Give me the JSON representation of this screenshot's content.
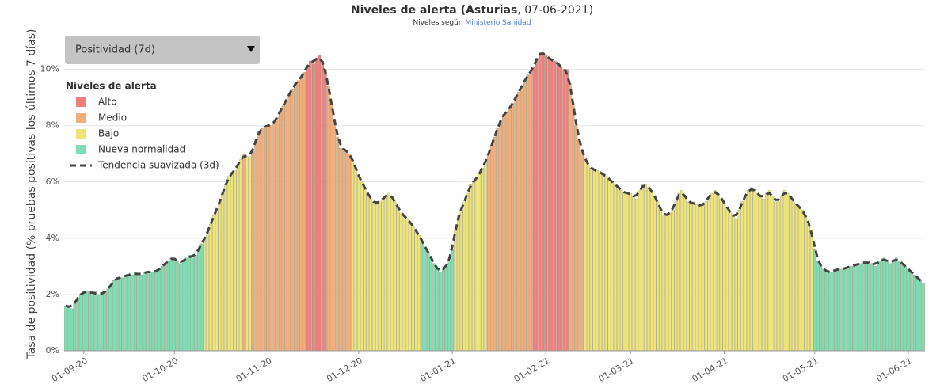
{
  "chart_data": {
    "type": "bar",
    "title": "Niveles de alerta (Asturias",
    "title_rest": ", 07-06-2021)",
    "subtitle": "Niveles según",
    "subtitle_link": "Ministerio Sanidad",
    "dropdown": "Positividad (7d)",
    "ylabel": "Tasa de positividad (% pruebas positivas los últimos 7 días)",
    "legend_title": "Niveles de alerta",
    "levels": [
      {
        "name": "Alto",
        "color": "#ef7f7f",
        "from": 10
      },
      {
        "name": "Medio",
        "color": "#f1ad7b",
        "from": 7
      },
      {
        "name": "Bajo",
        "color": "#eee57a",
        "from": 4
      },
      {
        "name": "Nueva normalidad",
        "color": "#7fdcb4",
        "from": 0
      }
    ],
    "trend": {
      "name": "Tendencia suavizada (3d)",
      "color": "#444444"
    },
    "categories": [
      null,
      null,
      null,
      null,
      null,
      null,
      "01-09-20",
      null,
      null,
      null,
      null,
      null,
      null,
      null,
      null,
      null,
      null,
      null,
      null,
      null,
      null,
      null,
      null,
      null,
      null,
      null,
      null,
      null,
      null,
      null,
      null,
      null,
      null,
      null,
      null,
      null,
      "01-10-20",
      null,
      null,
      null,
      null,
      null,
      null,
      null,
      null,
      null,
      null,
      null,
      null,
      null,
      null,
      null,
      null,
      null,
      null,
      null,
      null,
      null,
      null,
      null,
      null,
      null,
      null,
      null,
      null,
      null,
      null,
      "01-11-20",
      null,
      null,
      null,
      null,
      null,
      null,
      null,
      null,
      null,
      null,
      null,
      null,
      null,
      null,
      null,
      null,
      null,
      null,
      null,
      null,
      null,
      null,
      null,
      null,
      null,
      null,
      null,
      null,
      null,
      "01-12-20",
      null,
      null,
      null,
      null,
      null,
      null,
      null,
      null,
      null,
      null,
      null,
      null,
      null,
      null,
      null,
      null,
      null,
      null,
      null,
      null,
      null,
      null,
      null,
      null,
      null,
      null,
      null,
      null,
      null,
      null,
      "01-01-21",
      null,
      null,
      null,
      null,
      null,
      null,
      null,
      null,
      null,
      null,
      null,
      null,
      null,
      null,
      null,
      null,
      null,
      null,
      null,
      null,
      null,
      null,
      null,
      null,
      null,
      null,
      null,
      null,
      null,
      null,
      "01-02-21",
      null,
      null,
      null,
      null,
      null,
      null,
      null,
      null,
      null,
      null,
      null,
      null,
      null,
      null,
      null,
      null,
      null,
      null,
      null,
      null,
      null,
      null,
      null,
      null,
      null,
      null,
      null,
      "01-03-21",
      null,
      null,
      null,
      null,
      null,
      null,
      null,
      null,
      null,
      null,
      null,
      null,
      null,
      null,
      null,
      null,
      null,
      null,
      null,
      null,
      null,
      null,
      null,
      null,
      null,
      null,
      null,
      null,
      null,
      null,
      "01-04-21",
      null,
      null,
      null,
      null,
      null,
      null,
      null,
      null,
      null,
      null,
      null,
      null,
      null,
      null,
      null,
      null,
      null,
      null,
      null,
      null,
      null,
      null,
      null,
      null,
      null,
      null,
      null,
      null,
      null,
      "01-05-21",
      null,
      null,
      null,
      null,
      null,
      null,
      null,
      null,
      null,
      null,
      null,
      null,
      null,
      null,
      null,
      null,
      null,
      null,
      null,
      null,
      null,
      null,
      null,
      null,
      null,
      null,
      null,
      null,
      null,
      null,
      "01-06-21",
      null,
      null,
      null,
      null,
      null
    ],
    "values": [
      1.6,
      1.6,
      1.5,
      1.7,
      1.9,
      2.0,
      2.1,
      2.1,
      2.1,
      2.0,
      2.1,
      2.0,
      2.0,
      2.1,
      2.2,
      2.3,
      2.5,
      2.6,
      2.6,
      2.6,
      2.7,
      2.7,
      2.7,
      2.8,
      2.7,
      2.7,
      2.8,
      2.8,
      2.8,
      2.8,
      2.8,
      2.9,
      3.0,
      3.1,
      3.2,
      3.3,
      3.3,
      3.2,
      3.1,
      3.2,
      3.3,
      3.4,
      3.3,
      3.4,
      3.6,
      3.8,
      4.0,
      4.2,
      4.5,
      4.8,
      5.0,
      5.3,
      5.6,
      5.9,
      6.2,
      6.3,
      6.4,
      6.6,
      6.8,
      7.0,
      6.9,
      6.9,
      7.1,
      7.5,
      7.8,
      7.9,
      8.0,
      8.0,
      8.0,
      8.1,
      8.3,
      8.5,
      8.7,
      8.9,
      9.1,
      9.3,
      9.5,
      9.6,
      9.7,
      9.9,
      10.1,
      10.3,
      10.2,
      10.4,
      10.5,
      10.3,
      10.0,
      9.4,
      8.8,
      8.2,
      7.6,
      7.2,
      7.2,
      7.1,
      7.0,
      6.8,
      6.5,
      6.2,
      6.0,
      5.8,
      5.6,
      5.4,
      5.3,
      5.2,
      5.3,
      5.4,
      5.5,
      5.6,
      5.5,
      5.3,
      5.1,
      4.9,
      4.8,
      4.7,
      4.6,
      4.4,
      4.3,
      4.1,
      3.9,
      3.7,
      3.5,
      3.3,
      3.1,
      2.9,
      2.8,
      2.9,
      3.0,
      3.2,
      3.6,
      4.3,
      4.8,
      5.0,
      5.3,
      5.6,
      5.9,
      6.0,
      6.1,
      6.3,
      6.5,
      6.7,
      7.0,
      7.3,
      7.6,
      7.9,
      8.2,
      8.4,
      8.5,
      8.6,
      8.8,
      9.0,
      9.2,
      9.4,
      9.6,
      9.8,
      9.9,
      10.1,
      10.4,
      10.6,
      10.6,
      10.5,
      10.4,
      10.3,
      10.3,
      10.2,
      10.1,
      10.0,
      10.0,
      9.5,
      8.8,
      8.0,
      7.5,
      7.1,
      6.8,
      6.6,
      6.5,
      6.4,
      6.4,
      6.3,
      6.3,
      6.2,
      6.1,
      6.0,
      5.9,
      5.8,
      5.7,
      5.6,
      5.6,
      5.6,
      5.5,
      5.4,
      5.7,
      5.9,
      5.9,
      5.8,
      5.7,
      5.5,
      5.3,
      5.0,
      4.8,
      4.8,
      4.9,
      5.0,
      5.3,
      5.6,
      5.7,
      5.5,
      5.3,
      5.2,
      5.3,
      5.2,
      5.1,
      5.2,
      5.3,
      5.5,
      5.6,
      5.7,
      5.6,
      5.4,
      5.3,
      5.1,
      4.9,
      4.8,
      4.7,
      5.0,
      5.3,
      5.5,
      5.7,
      5.8,
      5.7,
      5.6,
      5.5,
      5.4,
      5.6,
      5.7,
      5.5,
      5.3,
      5.3,
      5.5,
      5.7,
      5.6,
      5.5,
      5.3,
      5.2,
      5.1,
      5.0,
      4.8,
      4.5,
      4.3,
      3.6,
      3.2,
      3.0,
      2.9,
      2.8,
      2.8,
      2.8,
      2.9,
      2.9,
      2.9,
      2.9,
      3.0,
      3.0,
      3.0,
      3.1,
      3.1,
      3.1,
      3.2,
      3.1,
      3.1,
      3.0,
      3.2,
      3.2,
      3.3,
      3.2,
      3.1,
      3.2,
      3.3,
      3.2,
      3.1,
      3.0,
      2.9,
      2.8,
      2.7,
      2.6,
      2.5,
      2.4
    ],
    "ylim": [
      0,
      11.2
    ],
    "yticks": [
      {
        "value": 0,
        "label": "0%"
      },
      {
        "value": 2,
        "label": "2%"
      },
      {
        "value": 4,
        "label": "4%"
      },
      {
        "value": 6,
        "label": "6%"
      },
      {
        "value": 8,
        "label": "8%"
      },
      {
        "value": 10,
        "label": "10%"
      }
    ],
    "grid": true
  }
}
